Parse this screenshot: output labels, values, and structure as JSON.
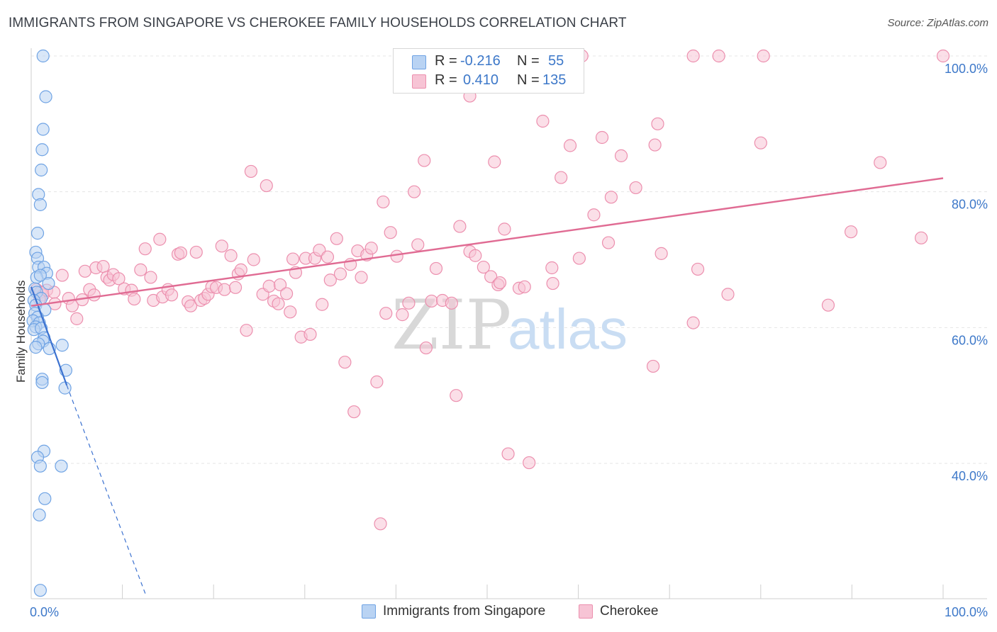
{
  "header": {
    "title": "IMMIGRANTS FROM SINGAPORE VS CHEROKEE FAMILY HOUSEHOLDS CORRELATION CHART",
    "source": "Source: ZipAtlas.com"
  },
  "legend": {
    "r_label": "R =",
    "n_label": "N =",
    "series": [
      {
        "name": "Immigrants from Singapore",
        "r": "-0.216",
        "n": "55"
      },
      {
        "name": "Cherokee",
        "r": "0.410",
        "n": "135"
      }
    ]
  },
  "watermark": {
    "zip": "ZIP",
    "atlas": "atlas"
  },
  "colors": {
    "blue": "#6fa3e4",
    "blue_fill": "#b9d3f3",
    "blue_line": "#3c72d0",
    "pink": "#ec8fae",
    "pink_fill": "#f7c4d5",
    "pink_line": "#e06b93",
    "value_text": "#3d78c9",
    "grid": "#e5e5e5"
  },
  "chart_data": {
    "type": "scatter",
    "title": "IMMIGRANTS FROM SINGAPORE VS CHEROKEE FAMILY HOUSEHOLDS CORRELATION CHART",
    "xlabel": "",
    "ylabel": "Family Households",
    "xlim": [
      0,
      100
    ],
    "ylim": [
      20,
      101
    ],
    "x_tick_labels": [
      "0.0%",
      "100.0%"
    ],
    "y_ticks": [
      40,
      60,
      80,
      100
    ],
    "y_tick_labels": [
      "40.0%",
      "60.0%",
      "80.0%",
      "100.0%"
    ],
    "series": [
      {
        "name": "Immigrants from Singapore",
        "color": "blue",
        "trend": {
          "x1": 0,
          "y1": 66.0,
          "x2": 3.9,
          "y2": 51.5,
          "dash_to_x": 12.6,
          "dash_to_y": 20.5
        },
        "points": [
          [
            1.3,
            100.0
          ],
          [
            1.6,
            94.0
          ],
          [
            1.3,
            89.2
          ],
          [
            1.2,
            86.2
          ],
          [
            1.1,
            83.2
          ],
          [
            0.8,
            79.6
          ],
          [
            1.0,
            78.1
          ],
          [
            0.7,
            73.9
          ],
          [
            0.5,
            71.1
          ],
          [
            0.7,
            70.2
          ],
          [
            0.8,
            68.9
          ],
          [
            1.4,
            68.9
          ],
          [
            1.7,
            68.0
          ],
          [
            0.6,
            67.4
          ],
          [
            1.0,
            67.7
          ],
          [
            1.9,
            66.5
          ],
          [
            0.4,
            65.7
          ],
          [
            0.6,
            65.2
          ],
          [
            1.1,
            64.3
          ],
          [
            0.3,
            64.0
          ],
          [
            0.5,
            63.3
          ],
          [
            1.5,
            62.6
          ],
          [
            0.4,
            62.1
          ],
          [
            0.7,
            61.5
          ],
          [
            0.2,
            61.0
          ],
          [
            0.9,
            60.7
          ],
          [
            0.5,
            60.1
          ],
          [
            0.3,
            59.7
          ],
          [
            1.1,
            59.9
          ],
          [
            1.4,
            58.5
          ],
          [
            1.3,
            58.0
          ],
          [
            0.8,
            57.6
          ],
          [
            3.4,
            57.4
          ],
          [
            2.0,
            56.9
          ],
          [
            0.5,
            57.1
          ],
          [
            3.8,
            53.7
          ],
          [
            1.2,
            52.4
          ],
          [
            1.2,
            51.9
          ],
          [
            3.7,
            51.1
          ],
          [
            1.4,
            41.8
          ],
          [
            0.7,
            40.9
          ],
          [
            1.0,
            39.6
          ],
          [
            3.3,
            39.6
          ],
          [
            1.5,
            34.8
          ],
          [
            0.9,
            32.4
          ],
          [
            1.0,
            21.3
          ]
        ]
      },
      {
        "name": "Cherokee",
        "color": "pink",
        "trend": {
          "x1": 0,
          "y1": 63.2,
          "x2": 100,
          "y2": 82.0
        },
        "points": [
          [
            0.6,
            65.6
          ],
          [
            1.0,
            65.2
          ],
          [
            1.3,
            64.8
          ],
          [
            0.9,
            64.2
          ],
          [
            1.7,
            65.5
          ],
          [
            2.5,
            65.2
          ],
          [
            2.6,
            63.5
          ],
          [
            3.4,
            67.7
          ],
          [
            4.1,
            64.3
          ],
          [
            4.5,
            63.2
          ],
          [
            5.0,
            61.3
          ],
          [
            5.6,
            64.1
          ],
          [
            5.9,
            68.3
          ],
          [
            6.4,
            65.6
          ],
          [
            6.9,
            64.8
          ],
          [
            7.1,
            68.8
          ],
          [
            7.9,
            69.0
          ],
          [
            8.3,
            67.4
          ],
          [
            8.6,
            67.0
          ],
          [
            9.0,
            67.8
          ],
          [
            9.6,
            67.2
          ],
          [
            10.2,
            65.7
          ],
          [
            11.0,
            65.5
          ],
          [
            11.3,
            64.2
          ],
          [
            12.0,
            68.5
          ],
          [
            12.5,
            71.6
          ],
          [
            13.1,
            67.4
          ],
          [
            13.4,
            64.0
          ],
          [
            14.1,
            73.0
          ],
          [
            14.4,
            64.5
          ],
          [
            15.0,
            65.6
          ],
          [
            15.4,
            64.8
          ],
          [
            16.1,
            70.8
          ],
          [
            16.4,
            71.0
          ],
          [
            17.2,
            63.8
          ],
          [
            17.5,
            63.2
          ],
          [
            18.1,
            71.1
          ],
          [
            18.6,
            64.0
          ],
          [
            19.0,
            64.3
          ],
          [
            19.4,
            64.9
          ],
          [
            19.8,
            66.0
          ],
          [
            20.3,
            65.9
          ],
          [
            20.9,
            72.0
          ],
          [
            21.2,
            65.6
          ],
          [
            21.9,
            70.6
          ],
          [
            22.4,
            65.9
          ],
          [
            22.7,
            67.9
          ],
          [
            23.0,
            68.5
          ],
          [
            23.6,
            59.6
          ],
          [
            24.1,
            83.0
          ],
          [
            24.4,
            70.0
          ],
          [
            25.4,
            64.9
          ],
          [
            25.8,
            80.9
          ],
          [
            26.1,
            66.1
          ],
          [
            26.6,
            63.9
          ],
          [
            27.1,
            63.5
          ],
          [
            27.3,
            66.3
          ],
          [
            28.0,
            65.0
          ],
          [
            28.4,
            62.3
          ],
          [
            28.7,
            70.1
          ],
          [
            29.0,
            68.1
          ],
          [
            29.6,
            58.6
          ],
          [
            30.1,
            70.2
          ],
          [
            30.6,
            59.0
          ],
          [
            31.1,
            70.2
          ],
          [
            31.6,
            71.4
          ],
          [
            31.9,
            63.4
          ],
          [
            32.5,
            70.4
          ],
          [
            32.8,
            67.0
          ],
          [
            33.5,
            73.1
          ],
          [
            33.9,
            67.9
          ],
          [
            34.4,
            54.9
          ],
          [
            35.0,
            69.3
          ],
          [
            35.4,
            47.6
          ],
          [
            35.8,
            71.3
          ],
          [
            36.2,
            67.4
          ],
          [
            36.8,
            70.7
          ],
          [
            37.3,
            71.7
          ],
          [
            37.9,
            52.0
          ],
          [
            38.3,
            31.1
          ],
          [
            38.6,
            78.5
          ],
          [
            38.9,
            62.1
          ],
          [
            39.4,
            74.0
          ],
          [
            40.1,
            70.5
          ],
          [
            40.7,
            61.9
          ],
          [
            41.4,
            63.6
          ],
          [
            42.0,
            80.0
          ],
          [
            42.4,
            72.2
          ],
          [
            43.1,
            84.6
          ],
          [
            43.3,
            57.0
          ],
          [
            43.9,
            63.9
          ],
          [
            44.4,
            68.7
          ],
          [
            45.1,
            64.0
          ],
          [
            46.1,
            63.6
          ],
          [
            46.6,
            50.0
          ],
          [
            47.0,
            74.9
          ],
          [
            48.1,
            94.1
          ],
          [
            48.1,
            71.2
          ],
          [
            48.7,
            70.6
          ],
          [
            49.6,
            68.9
          ],
          [
            50.4,
            67.5
          ],
          [
            50.8,
            84.4
          ],
          [
            51.2,
            66.3
          ],
          [
            51.4,
            66.6
          ],
          [
            51.9,
            74.5
          ],
          [
            52.3,
            41.4
          ],
          [
            53.5,
            65.8
          ],
          [
            54.1,
            66.0
          ],
          [
            54.6,
            40.1
          ],
          [
            56.1,
            90.4
          ],
          [
            57.1,
            68.8
          ],
          [
            57.2,
            66.5
          ],
          [
            58.1,
            82.1
          ],
          [
            59.1,
            86.8
          ],
          [
            60.1,
            70.2
          ],
          [
            61.7,
            76.6
          ],
          [
            62.6,
            88.0
          ],
          [
            63.3,
            72.5
          ],
          [
            63.6,
            79.2
          ],
          [
            64.7,
            85.3
          ],
          [
            66.3,
            80.6
          ],
          [
            68.2,
            54.3
          ],
          [
            68.4,
            86.9
          ],
          [
            68.7,
            90.0
          ],
          [
            69.1,
            70.9
          ],
          [
            72.6,
            60.7
          ],
          [
            73.1,
            68.6
          ],
          [
            76.4,
            64.9
          ],
          [
            80.0,
            87.2
          ],
          [
            87.4,
            63.3
          ],
          [
            89.9,
            74.1
          ],
          [
            93.1,
            84.3
          ],
          [
            97.6,
            73.2
          ]
        ]
      }
    ],
    "top_cluster_pink": [
      [
        48.4,
        100
      ],
      [
        48.9,
        100
      ],
      [
        60.4,
        100
      ],
      [
        72.6,
        100
      ],
      [
        75.4,
        100
      ],
      [
        80.3,
        100
      ],
      [
        100,
        100
      ]
    ]
  }
}
